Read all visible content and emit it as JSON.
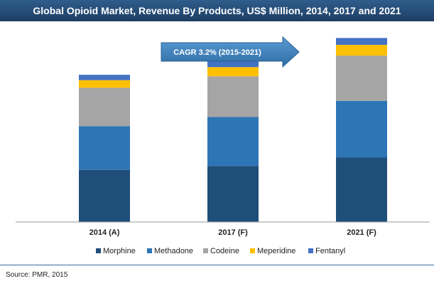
{
  "title": "Global Opioid Market, Revenue By Products, US$ Million, 2014, 2017 and 2021",
  "annotation": "CAGR 3.2% (2015-2021)",
  "source": "Source: PMR, 2015",
  "chart_data": {
    "type": "bar",
    "stacked": true,
    "categories": [
      "2014 (A)",
      "2017 (F)",
      "2021 (F)"
    ],
    "series": [
      {
        "name": "Morphine",
        "color": "#1f4e79",
        "values": [
          68,
          73,
          84
        ]
      },
      {
        "name": "Methadone",
        "color": "#2e75b6",
        "values": [
          57,
          64,
          74
        ]
      },
      {
        "name": "Codeine",
        "color": "#a5a5a5",
        "values": [
          50,
          53,
          59
        ]
      },
      {
        "name": "Meperidine",
        "color": "#ffc000",
        "values": [
          10,
          12,
          14
        ]
      },
      {
        "name": "Fentanyl",
        "color": "#4472c4",
        "values": [
          7,
          8,
          9
        ]
      }
    ],
    "ylim": [
      0,
      245
    ],
    "grid": false,
    "legend_position": "bottom"
  }
}
